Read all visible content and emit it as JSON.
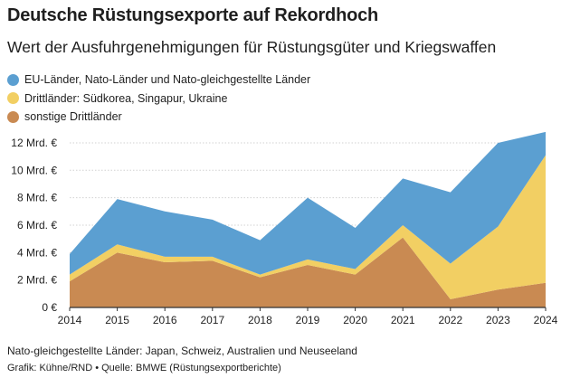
{
  "header": {
    "title": "Deutsche Rüstungsexporte auf Rekordhoch",
    "subtitle": "Wert der Ausfuhrgenehmigungen für Rüstungsgüter und Kriegswaffen"
  },
  "colors": {
    "eu_nato": "#5b9fd1",
    "drittlaender_sued": "#f2cf63",
    "sonstige": "#c98a52",
    "grid": "#d2d2d2",
    "axis": "#333333"
  },
  "footer": {
    "note": "Nato-gleichgestellte Länder: Japan, Schweiz, Australien und Neuseeland",
    "credit": "Grafik: Kühne/RND • Quelle: BMWE (Rüstungsexportberichte)"
  },
  "chart_data": {
    "type": "area",
    "stacked": true,
    "x": [
      "2014",
      "2015",
      "2016",
      "2017",
      "2018",
      "2019",
      "2020",
      "2021",
      "2022",
      "2023",
      "2024"
    ],
    "yticks": [
      "0 €",
      "2 Mrd. €",
      "4 Mrd. €",
      "6 Mrd. €",
      "8 Mrd. €",
      "10 Mrd. €",
      "12 Mrd. €"
    ],
    "ylim": [
      0,
      12.8
    ],
    "grid": true,
    "legend_position": "top-left",
    "series": [
      {
        "name": "EU-Länder, Nato-Länder und Nato-gleichgestellte Länder",
        "color_key": "eu_nato",
        "values": [
          1.5,
          3.3,
          3.3,
          2.7,
          2.5,
          4.5,
          3.0,
          3.4,
          5.2,
          6.1,
          1.7
        ]
      },
      {
        "name": "Drittländer: Südkorea, Singapur, Ukraine",
        "color_key": "drittlaender_sued",
        "values": [
          0.5,
          0.6,
          0.4,
          0.3,
          0.2,
          0.4,
          0.4,
          0.9,
          2.6,
          4.6,
          9.3
        ]
      },
      {
        "name": "sonstige Drittländer",
        "color_key": "sonstige",
        "values": [
          1.9,
          4.0,
          3.3,
          3.4,
          2.2,
          3.1,
          2.4,
          5.1,
          0.6,
          1.3,
          1.8
        ]
      }
    ]
  }
}
